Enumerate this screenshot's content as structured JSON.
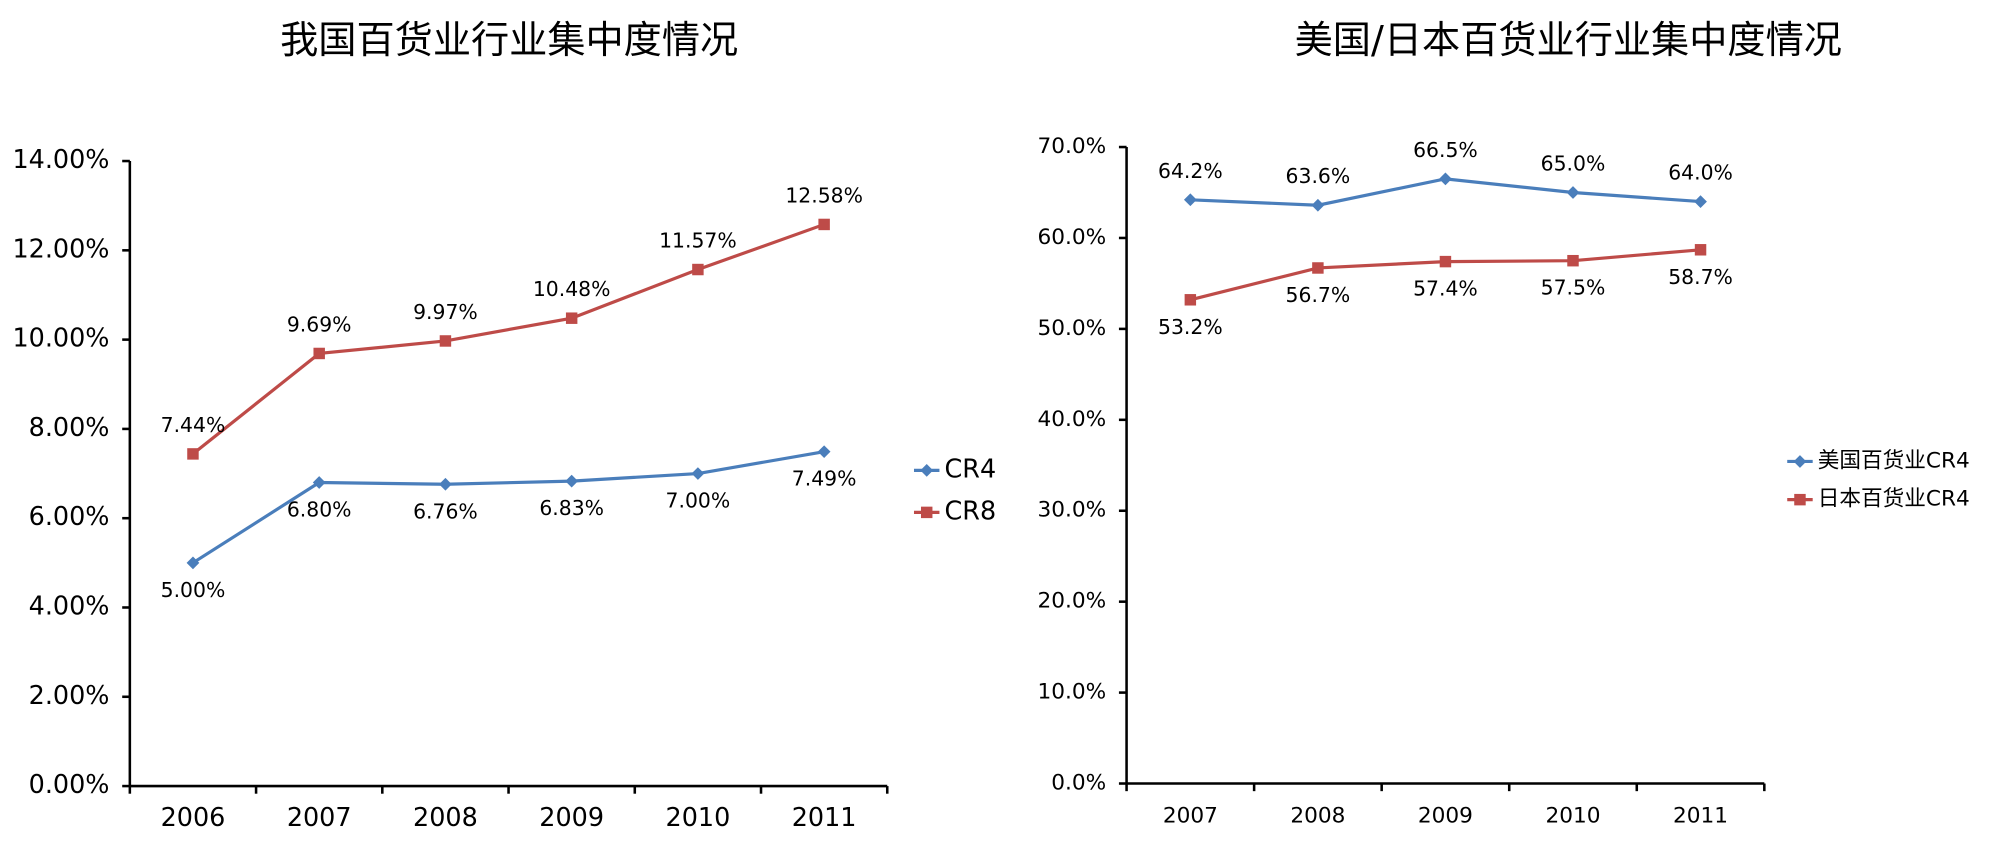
{
  "chart_data": [
    {
      "type": "line",
      "title": "我国百货业行业集中度情况",
      "categories": [
        "2006",
        "2007",
        "2008",
        "2009",
        "2010",
        "2011"
      ],
      "series": [
        {
          "name": "CR4",
          "color": "#4a7ebb",
          "values": [
            5.0,
            6.8,
            6.76,
            6.83,
            7.0,
            7.49
          ],
          "value_labels": [
            "5.00%",
            "6.80%",
            "6.76%",
            "6.83%",
            "7.00%",
            "7.49%"
          ]
        },
        {
          "name": "CR8",
          "color": "#be4b48",
          "values": [
            7.44,
            9.69,
            9.97,
            10.48,
            11.57,
            12.58
          ],
          "value_labels": [
            "7.44%",
            "9.69%",
            "9.97%",
            "10.48%",
            "11.57%",
            "12.58%"
          ]
        }
      ],
      "ylim": [
        0,
        14
      ],
      "yticks": [
        {
          "value": 0,
          "label": "0.00%"
        },
        {
          "value": 2,
          "label": "2.00%"
        },
        {
          "value": 4,
          "label": "4.00%"
        },
        {
          "value": 6,
          "label": "6.00%"
        },
        {
          "value": 8,
          "label": "8.00%"
        },
        {
          "value": 10,
          "label": "10.00%"
        },
        {
          "value": 12,
          "label": "12.00%"
        },
        {
          "value": 14,
          "label": "14.00%"
        }
      ],
      "grid": false,
      "legend": "right"
    },
    {
      "type": "line",
      "title": "美国/日本百货业行业集中度情况",
      "categories": [
        "2007",
        "2008",
        "2009",
        "2010",
        "2011"
      ],
      "series": [
        {
          "name": "美国百货业CR4",
          "color": "#4a7ebb",
          "values": [
            64.2,
            63.6,
            66.5,
            65.0,
            64.0
          ],
          "value_labels": [
            "64.2%",
            "63.6%",
            "66.5%",
            "65.0%",
            "64.0%"
          ]
        },
        {
          "name": "日本百货业CR4",
          "color": "#be4b48",
          "values": [
            53.2,
            56.7,
            57.4,
            57.5,
            58.7
          ],
          "value_labels": [
            "53.2%",
            "56.7%",
            "57.4%",
            "57.5%",
            "58.7%"
          ]
        }
      ],
      "ylim": [
        0,
        70
      ],
      "yticks": [
        {
          "value": 0,
          "label": "0.0%"
        },
        {
          "value": 10,
          "label": "10.0%"
        },
        {
          "value": 20,
          "label": "20.0%"
        },
        {
          "value": 30,
          "label": "30.0%"
        },
        {
          "value": 40,
          "label": "40.0%"
        },
        {
          "value": 50,
          "label": "50.0%"
        },
        {
          "value": 60,
          "label": "60.0%"
        },
        {
          "value": 70,
          "label": "70.0%"
        }
      ],
      "grid": false,
      "legend": "right"
    }
  ]
}
